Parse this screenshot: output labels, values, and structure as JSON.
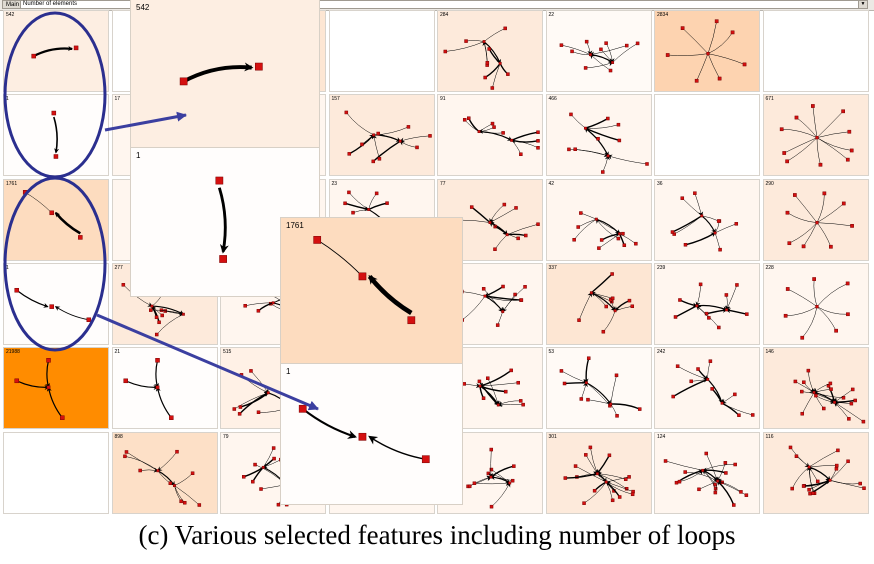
{
  "toolbar": {
    "main_button": "Main",
    "metric_dropdown": {
      "selected": "Number of elements"
    }
  },
  "colors": {
    "node": "#d41010",
    "node_border": "#7a0000",
    "edge": "#000000",
    "highlight_ellipse": "#2b2f8f",
    "callout_arrow": "#3b3fa0",
    "orange_high": "#ff8c00"
  },
  "grid": {
    "cells": [
      {
        "count": "542",
        "color": "#fdeee2",
        "motif": "arrow"
      },
      {
        "count": "",
        "color": "#ffffff",
        "motif": "none"
      },
      {
        "count": "",
        "color": "#fde6d3",
        "motif": "none"
      },
      {
        "count": "",
        "color": "#ffffff",
        "motif": "none"
      },
      {
        "count": "284",
        "color": "#fdeadb",
        "motif": "cluster"
      },
      {
        "count": "22",
        "color": "#fffaf6",
        "motif": "cluster"
      },
      {
        "count": "2834",
        "color": "#fdd3b0",
        "motif": "star"
      },
      {
        "count": "",
        "color": "#ffffff",
        "motif": "none"
      },
      {
        "count": "1",
        "color": "#fffdfc",
        "motif": "vertical"
      },
      {
        "count": "17",
        "color": "#fff6ef",
        "motif": "none"
      },
      {
        "count": "",
        "color": "#fff6ef",
        "motif": "none"
      },
      {
        "count": "157",
        "color": "#fdeadb",
        "motif": "cluster"
      },
      {
        "count": "91",
        "color": "#fff6ef",
        "motif": "cluster"
      },
      {
        "count": "466",
        "color": "#fff6ef",
        "motif": "cluster"
      },
      {
        "count": "",
        "color": "#ffffff",
        "motif": "none"
      },
      {
        "count": "671",
        "color": "#fdeadb",
        "motif": "star"
      },
      {
        "count": "1761",
        "color": "#fddcbf",
        "motif": "diag"
      },
      {
        "count": "",
        "color": "#fff6ef",
        "motif": "none"
      },
      {
        "count": "",
        "color": "#fff6ef",
        "motif": "none"
      },
      {
        "count": "23",
        "color": "#fff6ef",
        "motif": "cluster"
      },
      {
        "count": "77",
        "color": "#fdeadb",
        "motif": "cluster"
      },
      {
        "count": "42",
        "color": "#fff6ef",
        "motif": "cluster"
      },
      {
        "count": "36",
        "color": "#fff6ef",
        "motif": "cluster"
      },
      {
        "count": "290",
        "color": "#fdeadb",
        "motif": "star"
      },
      {
        "count": "1",
        "color": "#fffdfc",
        "motif": "horiz"
      },
      {
        "count": "277",
        "color": "#fdeadb",
        "motif": "cluster"
      },
      {
        "count": "",
        "color": "#fff6ef",
        "motif": "cluster"
      },
      {
        "count": "",
        "color": "#fff6ef",
        "motif": "none"
      },
      {
        "count": "",
        "color": "#fff6ef",
        "motif": "cluster"
      },
      {
        "count": "337",
        "color": "#fde6d3",
        "motif": "cluster"
      },
      {
        "count": "239",
        "color": "#fff6ef",
        "motif": "cluster"
      },
      {
        "count": "228",
        "color": "#fff6ef",
        "motif": "star"
      },
      {
        "count": "21988",
        "color": "#ff8c00",
        "motif": "tri"
      },
      {
        "count": "21",
        "color": "#fffdfc",
        "motif": "tri"
      },
      {
        "count": "515",
        "color": "#fff1e6",
        "motif": "cluster"
      },
      {
        "count": "",
        "color": "#fff6ef",
        "motif": "none"
      },
      {
        "count": "",
        "color": "#fff6ef",
        "motif": "cluster"
      },
      {
        "count": "53",
        "color": "#fffaf6",
        "motif": "cluster"
      },
      {
        "count": "242",
        "color": "#fff6ef",
        "motif": "cluster"
      },
      {
        "count": "146",
        "color": "#fdeadb",
        "motif": "dense"
      },
      {
        "count": "",
        "color": "#ffffff",
        "motif": "none"
      },
      {
        "count": "898",
        "color": "#fde0c7",
        "motif": "cluster"
      },
      {
        "count": "79",
        "color": "#fff6ef",
        "motif": "cluster"
      },
      {
        "count": "",
        "color": "#fff6ef",
        "motif": "none"
      },
      {
        "count": "",
        "color": "#fff6ef",
        "motif": "cluster"
      },
      {
        "count": "301",
        "color": "#fdeadb",
        "motif": "dense"
      },
      {
        "count": "124",
        "color": "#fff6ef",
        "motif": "dense"
      },
      {
        "count": "116",
        "color": "#fdeadb",
        "motif": "dense"
      }
    ]
  },
  "zooms": [
    {
      "count": "542",
      "color": "#fdeee2",
      "motif": "arrow"
    },
    {
      "count": "1",
      "color": "#fffdfc",
      "motif": "vertical"
    },
    {
      "count": "1761",
      "color": "#fddcbf",
      "motif": "diag"
    },
    {
      "count": "1",
      "color": "#fffdfc",
      "motif": "horiz"
    }
  ],
  "caption": "(c)  Various selected features including number of loops"
}
